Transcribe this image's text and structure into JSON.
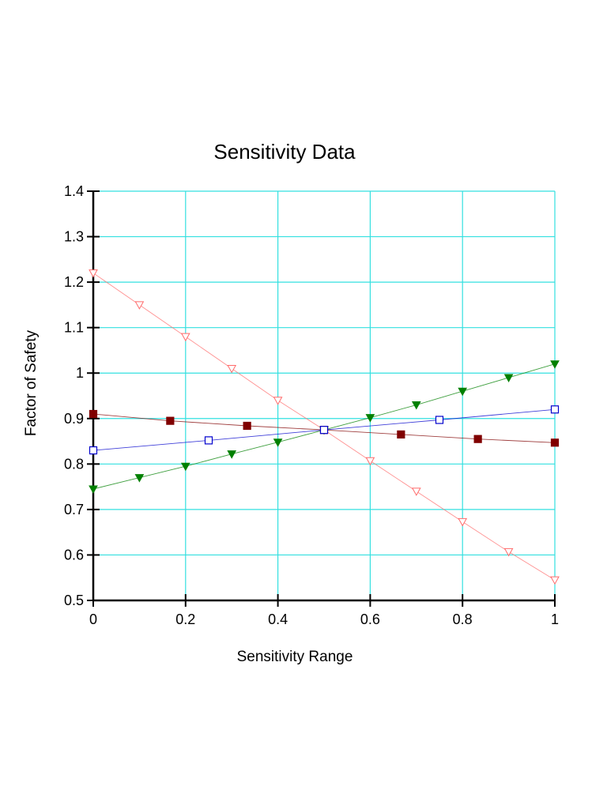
{
  "chart_data": {
    "type": "line",
    "title": "Sensitivity Data",
    "xlabel": "Sensitivity Range",
    "ylabel": "Factor of Safety",
    "xlim": [
      0,
      1
    ],
    "ylim": [
      0.5,
      1.4
    ],
    "xticks": [
      "0",
      "0.2",
      "0.4",
      "0.6",
      "0.8",
      "1"
    ],
    "yticks": [
      "0.5",
      "0.6",
      "0.7",
      "0.8",
      "0.9",
      "1",
      "1.1",
      "1.2",
      "1.3",
      "1.4"
    ],
    "grid": true,
    "grid_color": "#33e0e0",
    "series": [
      {
        "color": "#ff6b6b",
        "marker": "triangle-down-open",
        "x": [
          0,
          0.1,
          0.2,
          0.3,
          0.4,
          0.5,
          0.6,
          0.7,
          0.8,
          0.9,
          1.0
        ],
        "y": [
          1.22,
          1.15,
          1.08,
          1.01,
          0.94,
          0.875,
          0.807,
          0.74,
          0.673,
          0.607,
          0.545
        ]
      },
      {
        "color": "#008000",
        "marker": "triangle-down-filled",
        "x": [
          0,
          0.1,
          0.2,
          0.3,
          0.4,
          0.5,
          0.6,
          0.7,
          0.8,
          0.9,
          1.0
        ],
        "y": [
          0.745,
          0.77,
          0.795,
          0.822,
          0.848,
          0.875,
          0.902,
          0.93,
          0.96,
          0.99,
          1.02
        ]
      },
      {
        "color": "#800000",
        "marker": "square-filled",
        "x": [
          0,
          0.1667,
          0.3333,
          0.5,
          0.6667,
          0.8333,
          1.0
        ],
        "y": [
          0.91,
          0.895,
          0.884,
          0.875,
          0.865,
          0.855,
          0.847
        ]
      },
      {
        "color": "#0000cc",
        "marker": "square-open",
        "x": [
          0,
          0.25,
          0.5,
          0.75,
          1.0
        ],
        "y": [
          0.83,
          0.852,
          0.875,
          0.897,
          0.92
        ]
      }
    ]
  }
}
